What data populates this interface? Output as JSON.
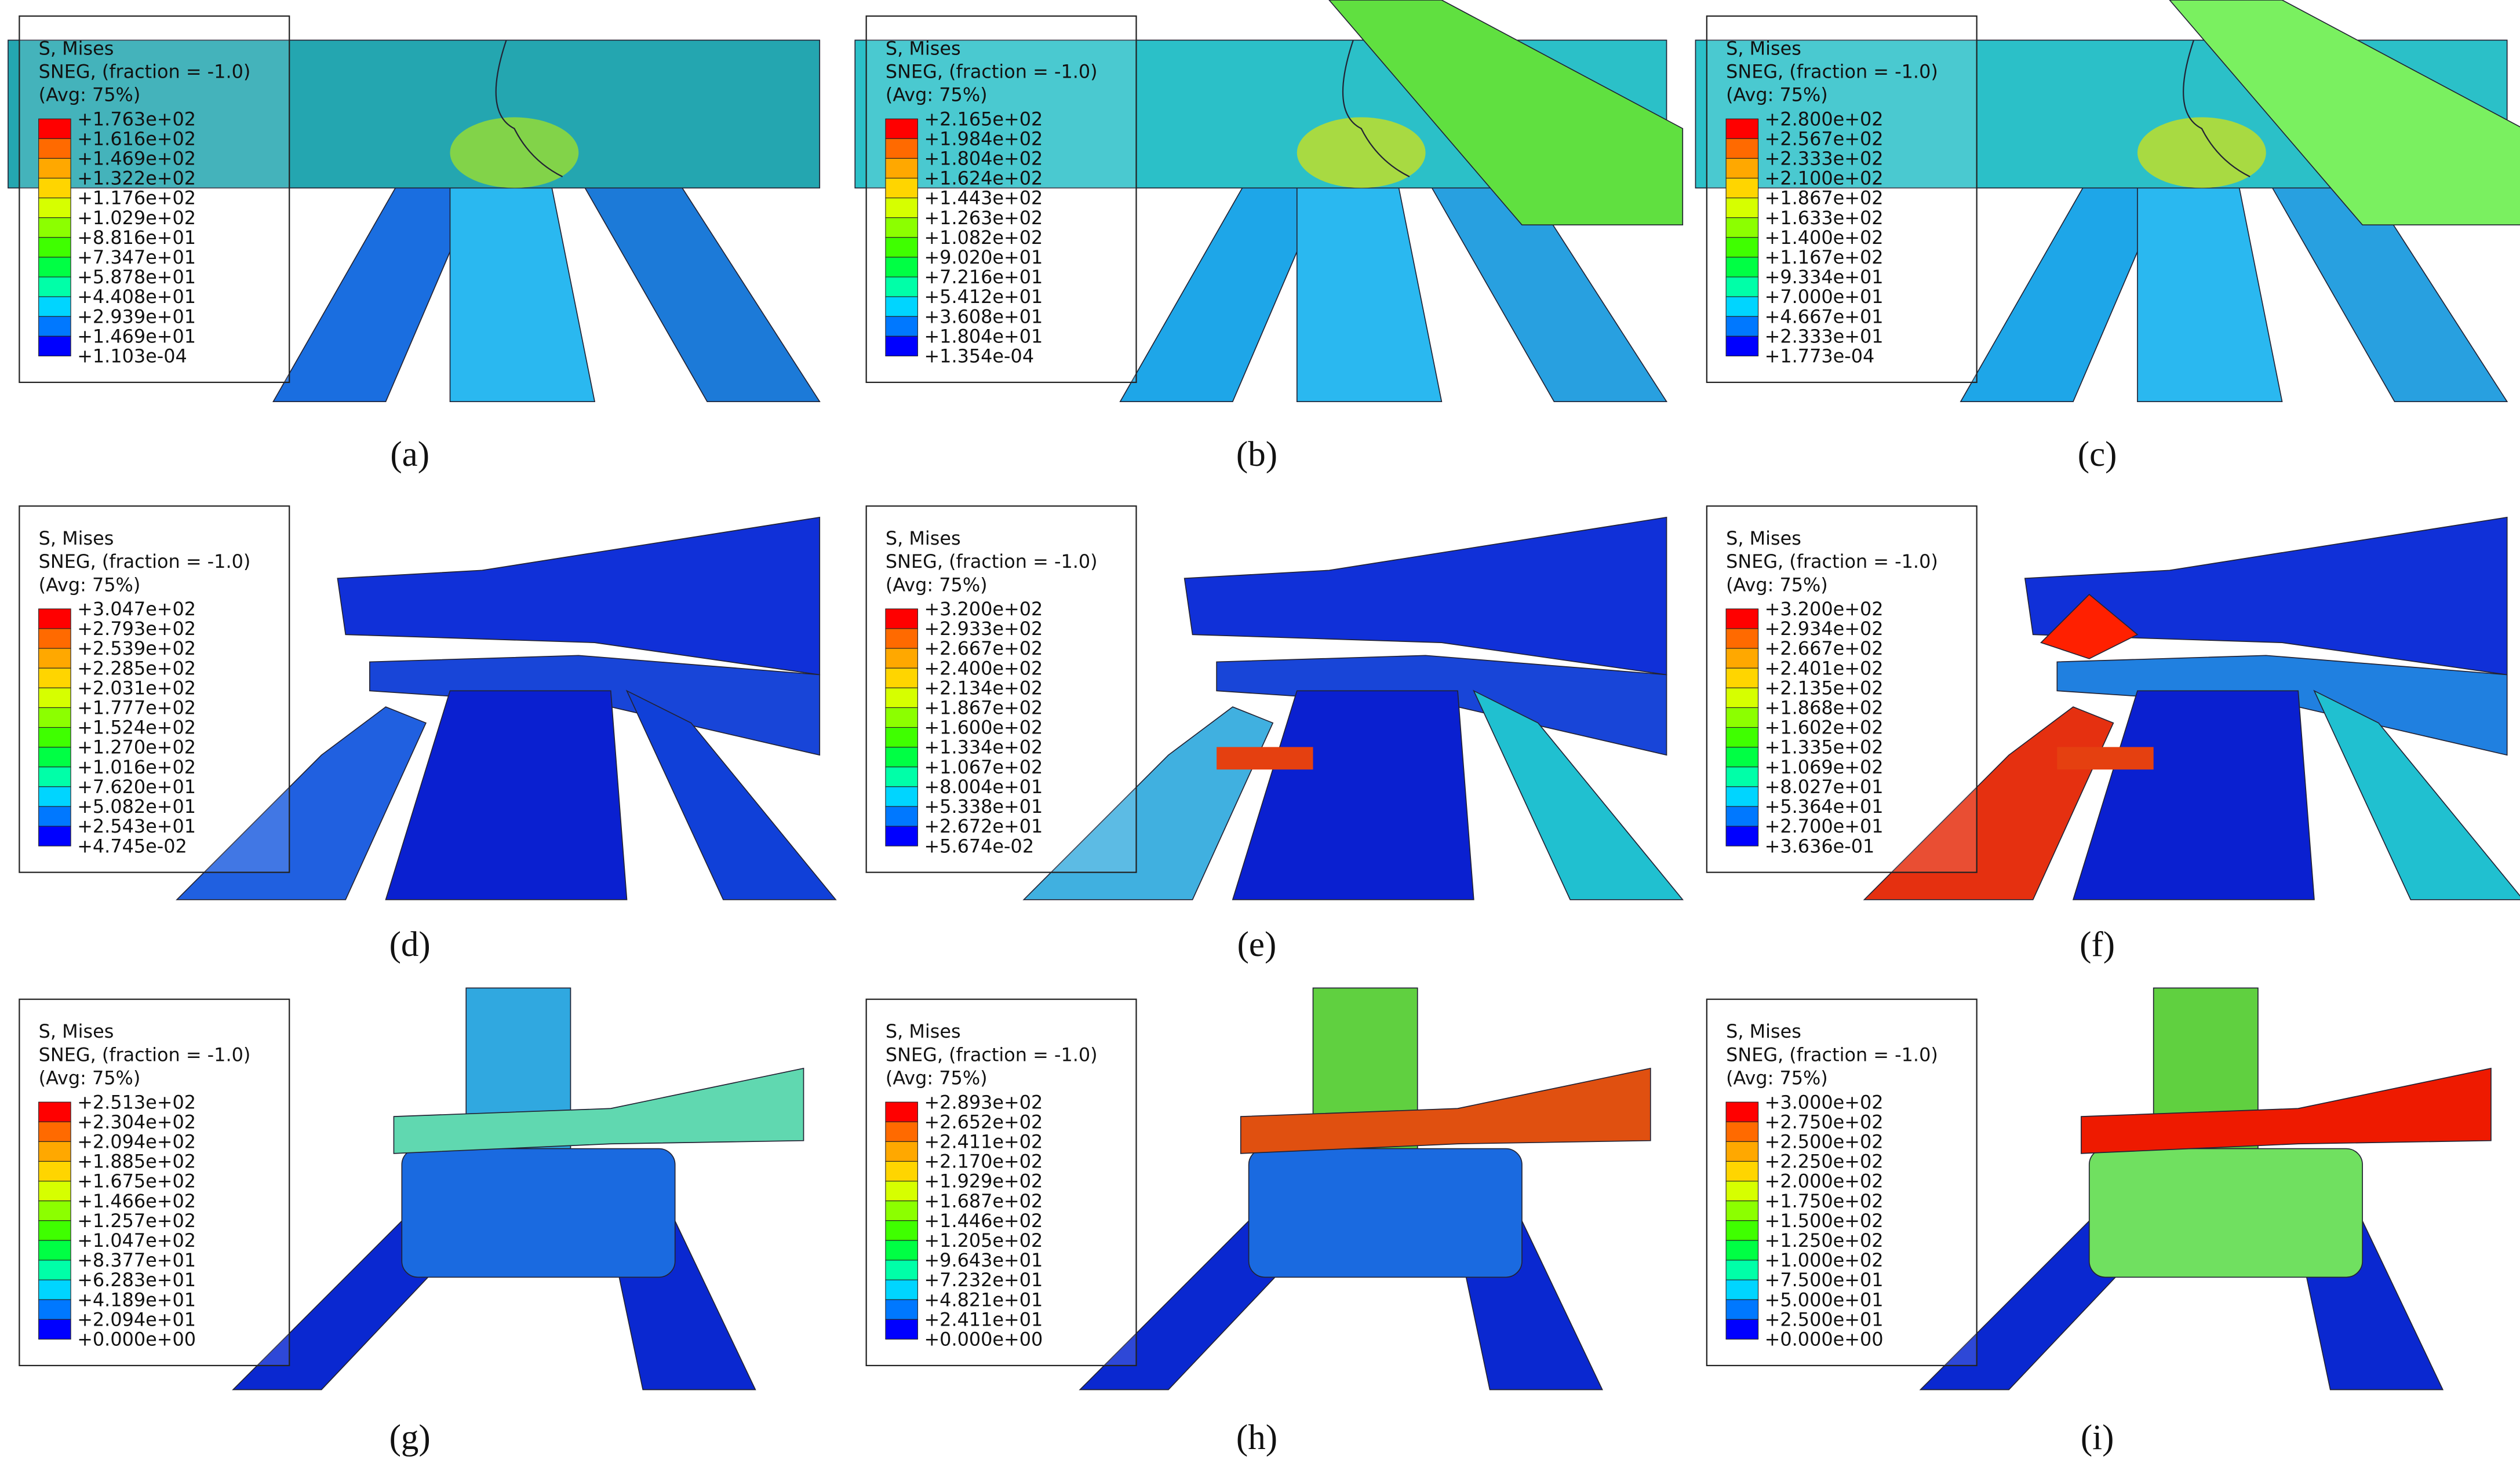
{
  "panels": [
    {
      "caption": "(a)",
      "legend": {
        "lines": [
          "S, Mises",
          "SNEG, (fraction = -1.0)",
          "(Avg: 75%)"
        ],
        "levels": [
          "+1.763e+02",
          "+1.616e+02",
          "+1.469e+02",
          "+1.322e+02",
          "+1.176e+02",
          "+1.029e+02",
          "+8.816e+01",
          "+7.347e+01",
          "+5.878e+01",
          "+4.408e+01",
          "+2.939e+01",
          "+1.469e+01",
          "+1.103e-04"
        ]
      }
    },
    {
      "caption": "(b)",
      "legend": {
        "lines": [
          "S, Mises",
          "SNEG, (fraction = -1.0)",
          "(Avg: 75%)"
        ],
        "levels": [
          "+2.165e+02",
          "+1.984e+02",
          "+1.804e+02",
          "+1.624e+02",
          "+1.443e+02",
          "+1.263e+02",
          "+1.082e+02",
          "+9.020e+01",
          "+7.216e+01",
          "+5.412e+01",
          "+3.608e+01",
          "+1.804e+01",
          "+1.354e-04"
        ]
      }
    },
    {
      "caption": "(c)",
      "legend": {
        "lines": [
          "S, Mises",
          "SNEG, (fraction = -1.0)",
          "(Avg: 75%)"
        ],
        "levels": [
          "+2.800e+02",
          "+2.567e+02",
          "+2.333e+02",
          "+2.100e+02",
          "+1.867e+02",
          "+1.633e+02",
          "+1.400e+02",
          "+1.167e+02",
          "+9.334e+01",
          "+7.000e+01",
          "+4.667e+01",
          "+2.333e+01",
          "+1.773e-04"
        ]
      }
    },
    {
      "caption": "(d)",
      "legend": {
        "lines": [
          "S, Mises",
          "SNEG, (fraction = -1.0)",
          "(Avg: 75%)"
        ],
        "levels": [
          "+3.047e+02",
          "+2.793e+02",
          "+2.539e+02",
          "+2.285e+02",
          "+2.031e+02",
          "+1.777e+02",
          "+1.524e+02",
          "+1.270e+02",
          "+1.016e+02",
          "+7.620e+01",
          "+5.082e+01",
          "+2.543e+01",
          "+4.745e-02"
        ]
      }
    },
    {
      "caption": "(e)",
      "legend": {
        "lines": [
          "S, Mises",
          "SNEG, (fraction = -1.0)",
          "(Avg: 75%)"
        ],
        "levels": [
          "+3.200e+02",
          "+2.933e+02",
          "+2.667e+02",
          "+2.400e+02",
          "+2.134e+02",
          "+1.867e+02",
          "+1.600e+02",
          "+1.334e+02",
          "+1.067e+02",
          "+8.004e+01",
          "+5.338e+01",
          "+2.672e+01",
          "+5.674e-02"
        ]
      }
    },
    {
      "caption": "(f)",
      "legend": {
        "lines": [
          "S, Mises",
          "SNEG, (fraction = -1.0)",
          "(Avg: 75%)"
        ],
        "levels": [
          "+3.200e+02",
          "+2.934e+02",
          "+2.667e+02",
          "+2.401e+02",
          "+2.135e+02",
          "+1.868e+02",
          "+1.602e+02",
          "+1.335e+02",
          "+1.069e+02",
          "+8.027e+01",
          "+5.364e+01",
          "+2.700e+01",
          "+3.636e-01"
        ]
      }
    },
    {
      "caption": "(g)",
      "legend": {
        "lines": [
          "S, Mises",
          "SNEG, (fraction = -1.0)",
          "(Avg: 75%)"
        ],
        "levels": [
          "+2.513e+02",
          "+2.304e+02",
          "+2.094e+02",
          "+1.885e+02",
          "+1.675e+02",
          "+1.466e+02",
          "+1.257e+02",
          "+1.047e+02",
          "+8.377e+01",
          "+6.283e+01",
          "+4.189e+01",
          "+2.094e+01",
          "+0.000e+00"
        ]
      }
    },
    {
      "caption": "(h)",
      "legend": {
        "lines": [
          "S, Mises",
          "SNEG, (fraction = -1.0)",
          "(Avg: 75%)"
        ],
        "levels": [
          "+2.893e+02",
          "+2.652e+02",
          "+2.411e+02",
          "+2.170e+02",
          "+1.929e+02",
          "+1.687e+02",
          "+1.446e+02",
          "+1.205e+02",
          "+9.643e+01",
          "+7.232e+01",
          "+4.821e+01",
          "+2.411e+01",
          "+0.000e+00"
        ]
      }
    },
    {
      "caption": "(i)",
      "legend": {
        "lines": [
          "S, Mises",
          "SNEG, (fraction = -1.0)",
          "(Avg: 75%)"
        ],
        "levels": [
          "+3.000e+02",
          "+2.750e+02",
          "+2.500e+02",
          "+2.250e+02",
          "+2.000e+02",
          "+1.750e+02",
          "+1.500e+02",
          "+1.250e+02",
          "+1.000e+02",
          "+7.500e+01",
          "+5.000e+01",
          "+2.500e+01",
          "+0.000e+00"
        ]
      }
    }
  ]
}
